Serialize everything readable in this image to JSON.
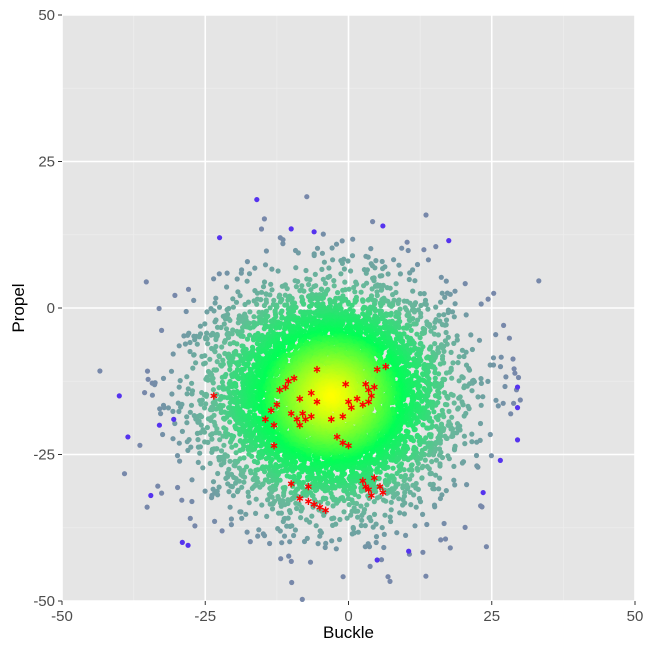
{
  "chart_data": {
    "type": "scatter",
    "xlabel": "Buckle",
    "ylabel": "Propel",
    "xlim": [
      -50,
      50
    ],
    "ylim": [
      -50,
      50
    ],
    "x_ticks": [
      -50,
      -25,
      0,
      25,
      50
    ],
    "y_ticks": [
      -50,
      -25,
      0,
      25,
      50
    ],
    "x_tick_labels": [
      "-50",
      "-25",
      "0",
      "25",
      "50"
    ],
    "y_tick_labels": [
      "-50",
      "-25",
      "0",
      "25",
      "50"
    ],
    "grid": true,
    "legend": "none",
    "colors": {
      "panel_background": "#e5e5e5",
      "grid_major": "#ffffff",
      "grid_minor": "#ededed",
      "density_center": "#ffff00",
      "density_mid": "#00ff55",
      "density_outer": "#66bb99",
      "outlier": "#5533ee",
      "highlight": "#ff0000"
    },
    "cloud": {
      "center": [
        -3,
        -15
      ],
      "spread": [
        10,
        9
      ],
      "approx_count": 7000
    },
    "outliers": [
      [
        -40,
        -15
      ],
      [
        -38.5,
        -22
      ],
      [
        -34.5,
        -32
      ],
      [
        -29,
        -40
      ],
      [
        -28,
        -40.5
      ],
      [
        -22.5,
        12
      ],
      [
        -16,
        18.5
      ],
      [
        -10,
        13.5
      ],
      [
        -6,
        13
      ],
      [
        6,
        14
      ],
      [
        17.5,
        11.5
      ],
      [
        29.5,
        -13.5
      ],
      [
        29.5,
        -17
      ],
      [
        29.5,
        -22.5
      ],
      [
        26.5,
        -26
      ],
      [
        23.5,
        -31.5
      ],
      [
        5,
        -43
      ],
      [
        10.5,
        -41.5
      ],
      [
        -33,
        -20
      ],
      [
        -30.5,
        -19
      ]
    ],
    "highlighted_points": [
      [
        -23.5,
        -15
      ],
      [
        -14.5,
        -19
      ],
      [
        -13.5,
        -17.5
      ],
      [
        -12.5,
        -16.5
      ],
      [
        -13,
        -20
      ],
      [
        -13,
        -23.5
      ],
      [
        -12,
        -14
      ],
      [
        -11,
        -13.5
      ],
      [
        -10.5,
        -12.5
      ],
      [
        -9.5,
        -12
      ],
      [
        -10,
        -18
      ],
      [
        -9,
        -19
      ],
      [
        -8.5,
        -20
      ],
      [
        -8,
        -18
      ],
      [
        -7.5,
        -19
      ],
      [
        -6.5,
        -18.5
      ],
      [
        -8.5,
        -15.5
      ],
      [
        -6.5,
        -14.5
      ],
      [
        -5.5,
        -16
      ],
      [
        -5.5,
        -10.5
      ],
      [
        -3,
        -19
      ],
      [
        -2,
        -22
      ],
      [
        -1,
        -23
      ],
      [
        0,
        -23.5
      ],
      [
        -1,
        -18.5
      ],
      [
        -0.5,
        -13
      ],
      [
        0,
        -16
      ],
      [
        0.5,
        -17
      ],
      [
        1.5,
        -15.5
      ],
      [
        2.5,
        -16.5
      ],
      [
        3,
        -13
      ],
      [
        3.5,
        -14
      ],
      [
        4,
        -15
      ],
      [
        4.5,
        -13.5
      ],
      [
        3.5,
        -16
      ],
      [
        5,
        -10.5
      ],
      [
        6.5,
        -10
      ],
      [
        -10,
        -30
      ],
      [
        -7,
        -30.5
      ],
      [
        -8.5,
        -32.5
      ],
      [
        -7,
        -33
      ],
      [
        -6,
        -33.5
      ],
      [
        -5,
        -34
      ],
      [
        -4,
        -34.5
      ],
      [
        2.5,
        -29.5
      ],
      [
        3,
        -30.5
      ],
      [
        3.5,
        -31
      ],
      [
        4.5,
        -29
      ],
      [
        4,
        -32
      ],
      [
        5.5,
        -30.5
      ],
      [
        6,
        -31.5
      ]
    ]
  }
}
